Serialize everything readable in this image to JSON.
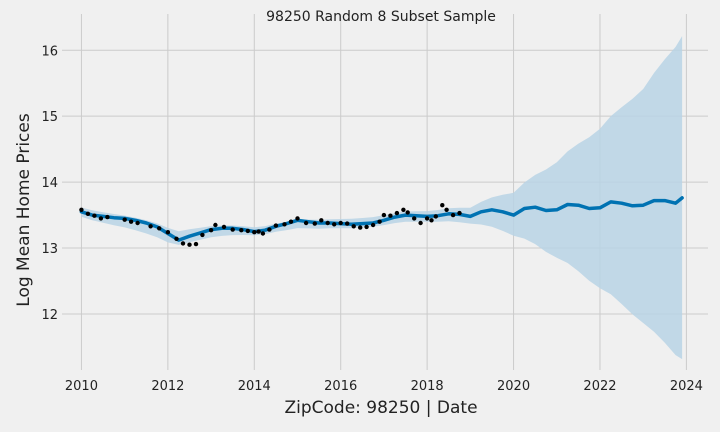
{
  "chart_data": {
    "type": "line",
    "title": "98250 Random 8 Subset Sample",
    "xlabel": "ZipCode: 98250 | Date",
    "ylabel": "Log Mean Home Prices",
    "xlim": [
      2009.55,
      2024.5
    ],
    "ylim": [
      11.15,
      16.55
    ],
    "x_ticks": [
      2010,
      2012,
      2014,
      2016,
      2018,
      2020,
      2022,
      2024
    ],
    "y_ticks": [
      12,
      13,
      14,
      15,
      16
    ],
    "grid": true,
    "colors": {
      "background": "#f0f0f0",
      "grid": "#cbcbcb",
      "forecast_line": "#0072B2",
      "uncertainty_band": "#b8d3e5",
      "observed_points": "#000000"
    },
    "forecast": {
      "name": "yhat",
      "x": [
        2010.0,
        2010.25,
        2010.5,
        2010.75,
        2011.0,
        2011.25,
        2011.5,
        2011.75,
        2012.0,
        2012.25,
        2012.5,
        2012.75,
        2013.0,
        2013.25,
        2013.5,
        2013.75,
        2014.0,
        2014.25,
        2014.5,
        2014.75,
        2015.0,
        2015.25,
        2015.5,
        2015.75,
        2016.0,
        2016.25,
        2016.5,
        2016.75,
        2017.0,
        2017.25,
        2017.5,
        2017.75,
        2018.0,
        2018.25,
        2018.5,
        2018.75,
        2019.0,
        2019.25,
        2019.5,
        2019.75,
        2020.0,
        2020.25,
        2020.5,
        2020.75,
        2021.0,
        2021.25,
        2021.5,
        2021.75,
        2022.0,
        2022.25,
        2022.5,
        2022.75,
        2023.0,
        2023.25,
        2023.5,
        2023.75,
        2023.9
      ],
      "y": [
        13.55,
        13.5,
        13.48,
        13.46,
        13.45,
        13.42,
        13.38,
        13.32,
        13.22,
        13.12,
        13.18,
        13.23,
        13.28,
        13.3,
        13.3,
        13.28,
        13.25,
        13.27,
        13.33,
        13.37,
        13.42,
        13.4,
        13.38,
        13.38,
        13.37,
        13.36,
        13.37,
        13.38,
        13.42,
        13.47,
        13.5,
        13.49,
        13.48,
        13.49,
        13.52,
        13.51,
        13.48,
        13.55,
        13.58,
        13.55,
        13.5,
        13.6,
        13.62,
        13.57,
        13.58,
        13.66,
        13.65,
        13.6,
        13.61,
        13.7,
        13.68,
        13.64,
        13.65,
        13.72,
        13.72,
        13.68,
        13.76
      ]
    },
    "uncertainty": {
      "x": [
        2010.0,
        2012.0,
        2014.0,
        2016.0,
        2018.0,
        2019.0,
        2020.0,
        2021.0,
        2022.0,
        2023.0,
        2023.9
      ],
      "upper": [
        13.61,
        13.28,
        13.32,
        13.44,
        13.56,
        13.62,
        13.85,
        14.3,
        14.8,
        15.4,
        16.22
      ],
      "lower": [
        13.47,
        13.06,
        13.2,
        13.3,
        13.4,
        13.38,
        13.2,
        12.85,
        12.38,
        11.85,
        11.32
      ]
    },
    "observed": {
      "x": [
        2010.0,
        2010.15,
        2010.3,
        2010.45,
        2010.6,
        2011.0,
        2011.15,
        2011.3,
        2011.6,
        2011.8,
        2012.0,
        2012.2,
        2012.35,
        2012.5,
        2012.65,
        2012.8,
        2013.0,
        2013.1,
        2013.3,
        2013.5,
        2013.7,
        2013.85,
        2014.0,
        2014.1,
        2014.2,
        2014.35,
        2014.5,
        2014.7,
        2014.85,
        2015.0,
        2015.2,
        2015.4,
        2015.55,
        2015.7,
        2015.85,
        2016.0,
        2016.15,
        2016.3,
        2016.45,
        2016.6,
        2016.75,
        2016.9,
        2017.0,
        2017.15,
        2017.3,
        2017.45,
        2017.55,
        2017.7,
        2017.85,
        2018.0,
        2018.1,
        2018.2,
        2018.35,
        2018.45,
        2018.6,
        2018.75
      ],
      "y": [
        13.58,
        13.52,
        13.49,
        13.45,
        13.47,
        13.43,
        13.4,
        13.38,
        13.33,
        13.3,
        13.24,
        13.14,
        13.07,
        13.05,
        13.06,
        13.2,
        13.27,
        13.35,
        13.32,
        13.28,
        13.27,
        13.26,
        13.24,
        13.25,
        13.22,
        13.28,
        13.34,
        13.36,
        13.4,
        13.45,
        13.38,
        13.37,
        13.42,
        13.38,
        13.36,
        13.38,
        13.37,
        13.33,
        13.31,
        13.32,
        13.35,
        13.4,
        13.5,
        13.49,
        13.53,
        13.58,
        13.54,
        13.45,
        13.38,
        13.45,
        13.42,
        13.48,
        13.65,
        13.58,
        13.5,
        13.53
      ]
    }
  }
}
